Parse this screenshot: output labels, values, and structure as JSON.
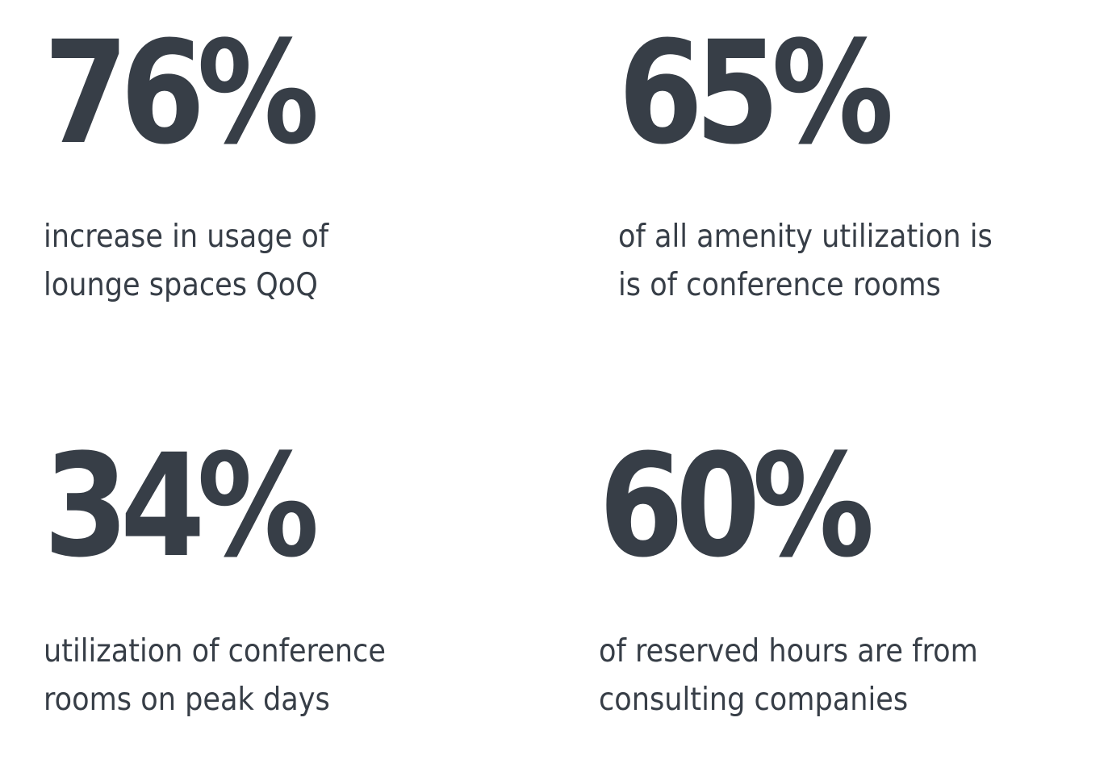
{
  "stats": [
    {
      "value": "76%",
      "line1": "increase in usage of",
      "line2": "lounge spaces QoQ"
    },
    {
      "value": "65%",
      "line1": "of all amenity utilization is",
      "line2": "is of conference rooms"
    },
    {
      "value": "34%",
      "line1": "utilization of conference",
      "line2": "rooms on peak days"
    },
    {
      "value": "60%",
      "line1": "of reserved hours are from",
      "line2": "consulting companies"
    }
  ],
  "colors": {
    "text": "#373e47",
    "background": "#ffffff"
  }
}
